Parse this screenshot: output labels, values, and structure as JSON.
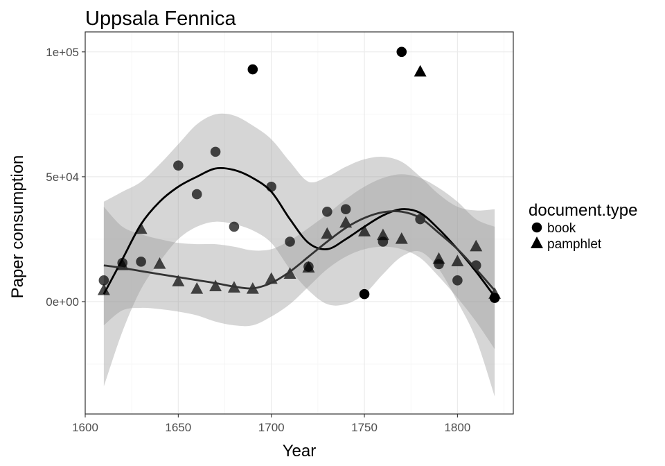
{
  "chart_data": {
    "type": "scatter",
    "title": "Uppsala Fennica",
    "xlabel": "Year",
    "ylabel": "Paper consumption",
    "xlim": [
      1600,
      1830
    ],
    "ylim": [
      -45000,
      108000
    ],
    "x_ticks": [
      1600,
      1650,
      1700,
      1750,
      1800
    ],
    "y_ticks": [
      {
        "value": 0,
        "label": "0e+00"
      },
      {
        "value": 50000,
        "label": "5e+04"
      },
      {
        "value": 100000,
        "label": "1e+05"
      }
    ],
    "grid": true,
    "legend": {
      "title": "document.type",
      "position": "right"
    },
    "series": [
      {
        "name": "book",
        "shape": "circle",
        "points": [
          {
            "x": 1610,
            "y": 8500
          },
          {
            "x": 1620,
            "y": 15500
          },
          {
            "x": 1630,
            "y": 16000
          },
          {
            "x": 1650,
            "y": 54500
          },
          {
            "x": 1660,
            "y": 43000
          },
          {
            "x": 1670,
            "y": 60000
          },
          {
            "x": 1680,
            "y": 30000
          },
          {
            "x": 1690,
            "y": 93000
          },
          {
            "x": 1700,
            "y": 46000
          },
          {
            "x": 1710,
            "y": 24000
          },
          {
            "x": 1720,
            "y": 14000
          },
          {
            "x": 1730,
            "y": 36000
          },
          {
            "x": 1740,
            "y": 37000
          },
          {
            "x": 1750,
            "y": 3000
          },
          {
            "x": 1760,
            "y": 24000
          },
          {
            "x": 1770,
            "y": 100000
          },
          {
            "x": 1780,
            "y": 33000
          },
          {
            "x": 1790,
            "y": 15000
          },
          {
            "x": 1800,
            "y": 8500
          },
          {
            "x": 1810,
            "y": 14500
          },
          {
            "x": 1820,
            "y": 1500
          }
        ],
        "smooth": {
          "fit": [
            {
              "x": 1610,
              "y": 3000
            },
            {
              "x": 1620,
              "y": 17000
            },
            {
              "x": 1630,
              "y": 31000
            },
            {
              "x": 1640,
              "y": 40000
            },
            {
              "x": 1650,
              "y": 46000
            },
            {
              "x": 1660,
              "y": 50000
            },
            {
              "x": 1670,
              "y": 53300
            },
            {
              "x": 1680,
              "y": 52700
            },
            {
              "x": 1690,
              "y": 49500
            },
            {
              "x": 1700,
              "y": 44000
            },
            {
              "x": 1710,
              "y": 33000
            },
            {
              "x": 1720,
              "y": 23500
            },
            {
              "x": 1730,
              "y": 21000
            },
            {
              "x": 1740,
              "y": 25000
            },
            {
              "x": 1750,
              "y": 30000
            },
            {
              "x": 1760,
              "y": 34500
            },
            {
              "x": 1770,
              "y": 37000
            },
            {
              "x": 1780,
              "y": 35500
            },
            {
              "x": 1790,
              "y": 29000
            },
            {
              "x": 1800,
              "y": 21000
            },
            {
              "x": 1810,
              "y": 12000
            },
            {
              "x": 1820,
              "y": 2000
            }
          ],
          "upper": [
            {
              "x": 1610,
              "y": 40000
            },
            {
              "x": 1620,
              "y": 44000
            },
            {
              "x": 1630,
              "y": 48000
            },
            {
              "x": 1640,
              "y": 55000
            },
            {
              "x": 1650,
              "y": 63000
            },
            {
              "x": 1660,
              "y": 71000
            },
            {
              "x": 1670,
              "y": 75000
            },
            {
              "x": 1680,
              "y": 74500
            },
            {
              "x": 1690,
              "y": 70500
            },
            {
              "x": 1700,
              "y": 65000
            },
            {
              "x": 1710,
              "y": 56000
            },
            {
              "x": 1720,
              "y": 48000
            },
            {
              "x": 1730,
              "y": 50000
            },
            {
              "x": 1740,
              "y": 54000
            },
            {
              "x": 1750,
              "y": 57000
            },
            {
              "x": 1760,
              "y": 58000
            },
            {
              "x": 1770,
              "y": 56000
            },
            {
              "x": 1780,
              "y": 50000
            },
            {
              "x": 1790,
              "y": 43000
            },
            {
              "x": 1800,
              "y": 38000
            },
            {
              "x": 1810,
              "y": 36500
            },
            {
              "x": 1820,
              "y": 37000
            }
          ],
          "lower": [
            {
              "x": 1610,
              "y": -34000
            },
            {
              "x": 1620,
              "y": -12000
            },
            {
              "x": 1630,
              "y": 5000
            },
            {
              "x": 1640,
              "y": 16000
            },
            {
              "x": 1650,
              "y": 25000
            },
            {
              "x": 1660,
              "y": 30000
            },
            {
              "x": 1670,
              "y": 32000
            },
            {
              "x": 1680,
              "y": 31000
            },
            {
              "x": 1690,
              "y": 28500
            },
            {
              "x": 1700,
              "y": 23500
            },
            {
              "x": 1710,
              "y": 13000
            },
            {
              "x": 1720,
              "y": 4500
            },
            {
              "x": 1730,
              "y": -1000
            },
            {
              "x": 1740,
              "y": -1000
            },
            {
              "x": 1750,
              "y": 3000
            },
            {
              "x": 1760,
              "y": 11000
            },
            {
              "x": 1770,
              "y": 18000
            },
            {
              "x": 1780,
              "y": 20000
            },
            {
              "x": 1790,
              "y": 13000
            },
            {
              "x": 1800,
              "y": 0
            },
            {
              "x": 1810,
              "y": -15000
            },
            {
              "x": 1820,
              "y": -38000
            }
          ]
        }
      },
      {
        "name": "pamphlet",
        "shape": "triangle",
        "points": [
          {
            "x": 1610,
            "y": 4500
          },
          {
            "x": 1620,
            "y": 14500
          },
          {
            "x": 1630,
            "y": 29000
          },
          {
            "x": 1640,
            "y": 15000
          },
          {
            "x": 1650,
            "y": 8000
          },
          {
            "x": 1660,
            "y": 5000
          },
          {
            "x": 1670,
            "y": 6000
          },
          {
            "x": 1680,
            "y": 5500
          },
          {
            "x": 1690,
            "y": 5000
          },
          {
            "x": 1700,
            "y": 9000
          },
          {
            "x": 1710,
            "y": 11000
          },
          {
            "x": 1720,
            "y": 13500
          },
          {
            "x": 1730,
            "y": 27000
          },
          {
            "x": 1740,
            "y": 31500
          },
          {
            "x": 1750,
            "y": 28000
          },
          {
            "x": 1760,
            "y": 26500
          },
          {
            "x": 1770,
            "y": 25000
          },
          {
            "x": 1780,
            "y": 92000
          },
          {
            "x": 1790,
            "y": 17000
          },
          {
            "x": 1800,
            "y": 16000
          },
          {
            "x": 1810,
            "y": 22000
          },
          {
            "x": 1820,
            "y": 3000
          }
        ],
        "smooth": {
          "fit": [
            {
              "x": 1610,
              "y": 14500
            },
            {
              "x": 1620,
              "y": 13500
            },
            {
              "x": 1630,
              "y": 12200
            },
            {
              "x": 1640,
              "y": 11000
            },
            {
              "x": 1650,
              "y": 9800
            },
            {
              "x": 1660,
              "y": 8600
            },
            {
              "x": 1670,
              "y": 7400
            },
            {
              "x": 1680,
              "y": 6000
            },
            {
              "x": 1690,
              "y": 5300
            },
            {
              "x": 1700,
              "y": 7500
            },
            {
              "x": 1710,
              "y": 12000
            },
            {
              "x": 1720,
              "y": 18000
            },
            {
              "x": 1730,
              "y": 24000
            },
            {
              "x": 1740,
              "y": 29500
            },
            {
              "x": 1750,
              "y": 33500
            },
            {
              "x": 1760,
              "y": 35800
            },
            {
              "x": 1770,
              "y": 36000
            },
            {
              "x": 1780,
              "y": 33500
            },
            {
              "x": 1790,
              "y": 27500
            },
            {
              "x": 1800,
              "y": 21000
            },
            {
              "x": 1810,
              "y": 13000
            },
            {
              "x": 1820,
              "y": 4500
            }
          ],
          "upper": [
            {
              "x": 1610,
              "y": 38000
            },
            {
              "x": 1620,
              "y": 30000
            },
            {
              "x": 1630,
              "y": 27000
            },
            {
              "x": 1640,
              "y": 25000
            },
            {
              "x": 1650,
              "y": 23500
            },
            {
              "x": 1660,
              "y": 23000
            },
            {
              "x": 1670,
              "y": 23000
            },
            {
              "x": 1680,
              "y": 22000
            },
            {
              "x": 1690,
              "y": 20500
            },
            {
              "x": 1700,
              "y": 21000
            },
            {
              "x": 1710,
              "y": 24500
            },
            {
              "x": 1720,
              "y": 29500
            },
            {
              "x": 1730,
              "y": 35000
            },
            {
              "x": 1740,
              "y": 41000
            },
            {
              "x": 1750,
              "y": 46000
            },
            {
              "x": 1760,
              "y": 49500
            },
            {
              "x": 1770,
              "y": 51000
            },
            {
              "x": 1780,
              "y": 49500
            },
            {
              "x": 1790,
              "y": 45500
            },
            {
              "x": 1800,
              "y": 40000
            },
            {
              "x": 1810,
              "y": 33000
            },
            {
              "x": 1820,
              "y": 30000
            }
          ],
          "lower": [
            {
              "x": 1610,
              "y": -9500
            },
            {
              "x": 1620,
              "y": -3500
            },
            {
              "x": 1630,
              "y": -2500
            },
            {
              "x": 1640,
              "y": -3000
            },
            {
              "x": 1650,
              "y": -4000
            },
            {
              "x": 1660,
              "y": -5500
            },
            {
              "x": 1670,
              "y": -8000
            },
            {
              "x": 1680,
              "y": -9500
            },
            {
              "x": 1690,
              "y": -9500
            },
            {
              "x": 1700,
              "y": -6000
            },
            {
              "x": 1710,
              "y": -1000
            },
            {
              "x": 1720,
              "y": 6000
            },
            {
              "x": 1730,
              "y": 13000
            },
            {
              "x": 1740,
              "y": 18000
            },
            {
              "x": 1750,
              "y": 21000
            },
            {
              "x": 1760,
              "y": 22000
            },
            {
              "x": 1770,
              "y": 21000
            },
            {
              "x": 1780,
              "y": 17500
            },
            {
              "x": 1790,
              "y": 10000
            },
            {
              "x": 1800,
              "y": 1500
            },
            {
              "x": 1810,
              "y": -8000
            },
            {
              "x": 1820,
              "y": -19000
            }
          ]
        }
      }
    ]
  }
}
